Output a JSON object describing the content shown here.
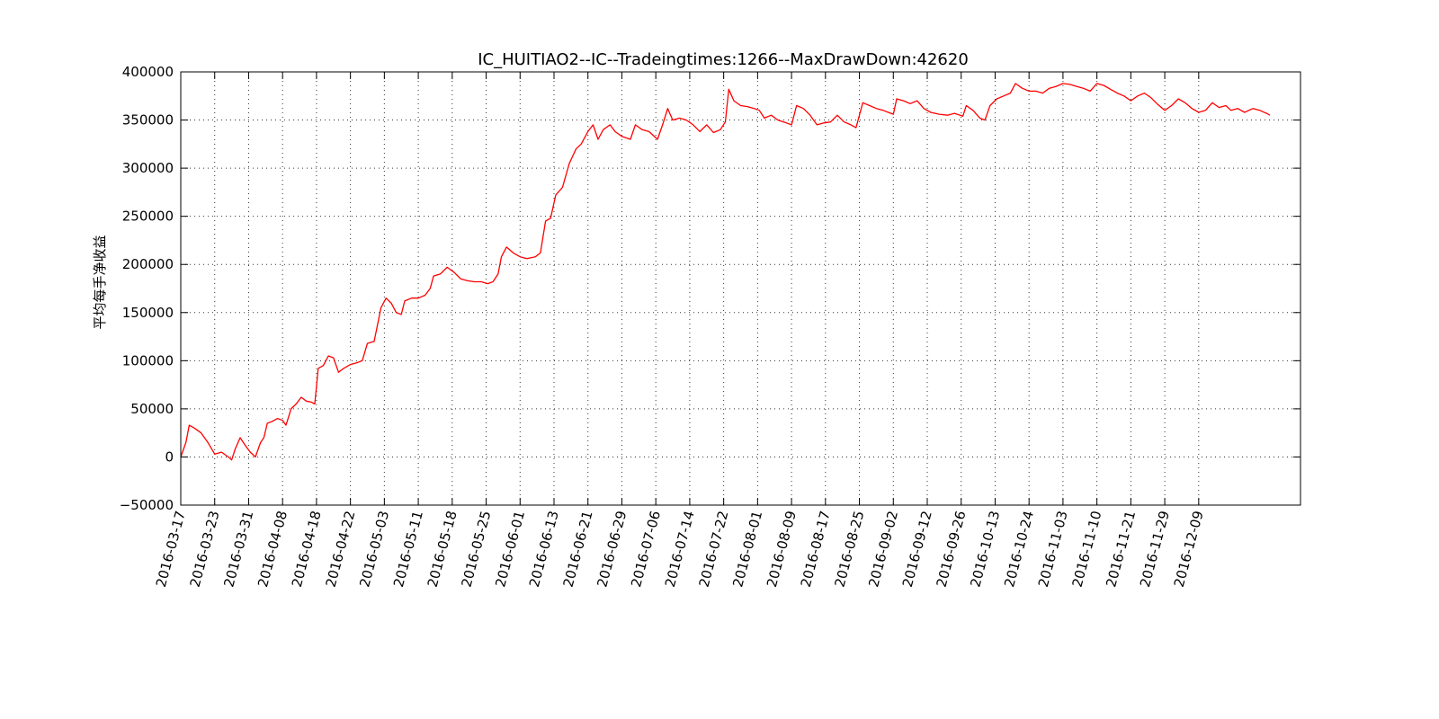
{
  "chart_data": {
    "type": "line",
    "title": "IC_HUITIAO2--IC--Tradeingtimes:1266--MaxDrawDown:42620",
    "xlabel": "",
    "ylabel": "平均每手净收益",
    "ylim": [
      -50000,
      400000
    ],
    "y_ticks": [
      "−50000",
      "0",
      "50000",
      "100000",
      "150000",
      "200000",
      "250000",
      "300000",
      "350000",
      "400000"
    ],
    "x_ticks": [
      "2016-03-17",
      "2016-03-23",
      "2016-03-31",
      "2016-04-08",
      "2016-04-18",
      "2016-04-22",
      "2016-05-03",
      "2016-05-11",
      "2016-05-18",
      "2016-05-25",
      "2016-06-01",
      "2016-06-13",
      "2016-06-21",
      "2016-06-29",
      "2016-07-06",
      "2016-07-14",
      "2016-07-22",
      "2016-08-01",
      "2016-08-09",
      "2016-08-17",
      "2016-08-25",
      "2016-09-02",
      "2016-09-12",
      "2016-09-26",
      "2016-10-13",
      "2016-10-24",
      "2016-11-03",
      "2016-11-10",
      "2016-11-21",
      "2016-11-29",
      "2016-12-09"
    ],
    "grid": true,
    "line_color": "#ff0000",
    "series": [
      {
        "name": "",
        "points": [
          [
            0,
            0
          ],
          [
            0.15,
            15000
          ],
          [
            0.25,
            33000
          ],
          [
            0.4,
            30000
          ],
          [
            0.6,
            25000
          ],
          [
            0.8,
            15000
          ],
          [
            1.0,
            3000
          ],
          [
            1.2,
            5000
          ],
          [
            1.4,
            0
          ],
          [
            1.5,
            -3000
          ],
          [
            1.6,
            8000
          ],
          [
            1.75,
            20000
          ],
          [
            1.9,
            12000
          ],
          [
            2.05,
            5000
          ],
          [
            2.2,
            0
          ],
          [
            2.35,
            15000
          ],
          [
            2.45,
            20000
          ],
          [
            2.55,
            35000
          ],
          [
            2.7,
            37000
          ],
          [
            2.85,
            40000
          ],
          [
            3.0,
            38000
          ],
          [
            3.1,
            33000
          ],
          [
            3.25,
            50000
          ],
          [
            3.4,
            55000
          ],
          [
            3.55,
            62000
          ],
          [
            3.7,
            58000
          ],
          [
            3.85,
            57000
          ],
          [
            3.95,
            55000
          ],
          [
            4.05,
            92000
          ],
          [
            4.2,
            95000
          ],
          [
            4.35,
            105000
          ],
          [
            4.5,
            103000
          ],
          [
            4.65,
            88000
          ],
          [
            4.8,
            92000
          ],
          [
            5.0,
            96000
          ],
          [
            5.2,
            98000
          ],
          [
            5.35,
            100000
          ],
          [
            5.5,
            118000
          ],
          [
            5.7,
            120000
          ],
          [
            5.9,
            155000
          ],
          [
            6.05,
            165000
          ],
          [
            6.2,
            160000
          ],
          [
            6.35,
            150000
          ],
          [
            6.5,
            148000
          ],
          [
            6.6,
            162000
          ],
          [
            6.8,
            165000
          ],
          [
            7.0,
            165000
          ],
          [
            7.2,
            168000
          ],
          [
            7.35,
            175000
          ],
          [
            7.45,
            188000
          ],
          [
            7.65,
            190000
          ],
          [
            7.85,
            197000
          ],
          [
            8.05,
            192000
          ],
          [
            8.25,
            185000
          ],
          [
            8.45,
            183000
          ],
          [
            8.65,
            182000
          ],
          [
            8.85,
            182000
          ],
          [
            9.05,
            180000
          ],
          [
            9.2,
            182000
          ],
          [
            9.35,
            190000
          ],
          [
            9.45,
            208000
          ],
          [
            9.6,
            218000
          ],
          [
            9.8,
            212000
          ],
          [
            10.0,
            208000
          ],
          [
            10.2,
            206000
          ],
          [
            10.45,
            208000
          ],
          [
            10.6,
            212000
          ],
          [
            10.75,
            245000
          ],
          [
            10.9,
            248000
          ],
          [
            11.05,
            272000
          ],
          [
            11.25,
            280000
          ],
          [
            11.45,
            305000
          ],
          [
            11.65,
            320000
          ],
          [
            11.8,
            325000
          ],
          [
            12.0,
            338000
          ],
          [
            12.15,
            345000
          ],
          [
            12.3,
            330000
          ],
          [
            12.45,
            340000
          ],
          [
            12.65,
            345000
          ],
          [
            12.8,
            338000
          ],
          [
            13.0,
            333000
          ],
          [
            13.25,
            330000
          ],
          [
            13.4,
            345000
          ],
          [
            13.6,
            340000
          ],
          [
            13.8,
            338000
          ],
          [
            14.05,
            330000
          ],
          [
            14.2,
            345000
          ],
          [
            14.35,
            362000
          ],
          [
            14.5,
            350000
          ],
          [
            14.7,
            352000
          ],
          [
            14.9,
            350000
          ],
          [
            15.1,
            345000
          ],
          [
            15.3,
            338000
          ],
          [
            15.5,
            345000
          ],
          [
            15.7,
            337000
          ],
          [
            15.9,
            340000
          ],
          [
            16.05,
            348000
          ],
          [
            16.15,
            382000
          ],
          [
            16.3,
            370000
          ],
          [
            16.5,
            365000
          ],
          [
            16.7,
            364000
          ],
          [
            16.9,
            362000
          ],
          [
            17.05,
            360000
          ],
          [
            17.2,
            352000
          ],
          [
            17.4,
            355000
          ],
          [
            17.6,
            350000
          ],
          [
            17.85,
            347000
          ],
          [
            18.0,
            345000
          ],
          [
            18.15,
            365000
          ],
          [
            18.35,
            362000
          ],
          [
            18.55,
            355000
          ],
          [
            18.75,
            345000
          ],
          [
            18.95,
            347000
          ],
          [
            19.15,
            348000
          ],
          [
            19.35,
            355000
          ],
          [
            19.55,
            348000
          ],
          [
            19.75,
            345000
          ],
          [
            19.9,
            342000
          ],
          [
            20.1,
            368000
          ],
          [
            20.3,
            365000
          ],
          [
            20.5,
            362000
          ],
          [
            20.7,
            360000
          ],
          [
            20.85,
            358000
          ],
          [
            21.0,
            356000
          ],
          [
            21.1,
            372000
          ],
          [
            21.3,
            370000
          ],
          [
            21.5,
            367000
          ],
          [
            21.7,
            370000
          ],
          [
            21.9,
            362000
          ],
          [
            22.1,
            358000
          ],
          [
            22.35,
            356000
          ],
          [
            22.6,
            355000
          ],
          [
            22.8,
            357000
          ],
          [
            23.05,
            354000
          ],
          [
            23.15,
            365000
          ],
          [
            23.35,
            360000
          ],
          [
            23.55,
            352000
          ],
          [
            23.7,
            350000
          ],
          [
            23.85,
            365000
          ],
          [
            24.05,
            372000
          ],
          [
            24.25,
            375000
          ],
          [
            24.45,
            378000
          ],
          [
            24.6,
            388000
          ],
          [
            24.8,
            383000
          ],
          [
            25.0,
            380000
          ],
          [
            25.2,
            380000
          ],
          [
            25.4,
            378000
          ],
          [
            25.6,
            383000
          ],
          [
            25.8,
            385000
          ],
          [
            26.0,
            388000
          ],
          [
            26.2,
            387000
          ],
          [
            26.4,
            385000
          ],
          [
            26.6,
            383000
          ],
          [
            26.8,
            380000
          ],
          [
            27.0,
            388000
          ],
          [
            27.2,
            386000
          ],
          [
            27.4,
            382000
          ],
          [
            27.6,
            378000
          ],
          [
            27.8,
            375000
          ],
          [
            28.0,
            370000
          ],
          [
            28.2,
            375000
          ],
          [
            28.4,
            378000
          ],
          [
            28.6,
            373000
          ],
          [
            28.8,
            366000
          ],
          [
            29.0,
            360000
          ],
          [
            29.2,
            365000
          ],
          [
            29.4,
            372000
          ],
          [
            29.6,
            368000
          ],
          [
            29.8,
            362000
          ],
          [
            30.0,
            358000
          ],
          [
            30.2,
            360000
          ],
          [
            30.4,
            368000
          ],
          [
            30.6,
            363000
          ],
          [
            30.8,
            365000
          ],
          [
            30.95,
            360000
          ],
          [
            31.15,
            362000
          ],
          [
            31.35,
            358000
          ],
          [
            31.6,
            362000
          ],
          [
            31.8,
            360000
          ],
          [
            32.0,
            357000
          ],
          [
            32.1,
            355000
          ]
        ]
      }
    ]
  }
}
